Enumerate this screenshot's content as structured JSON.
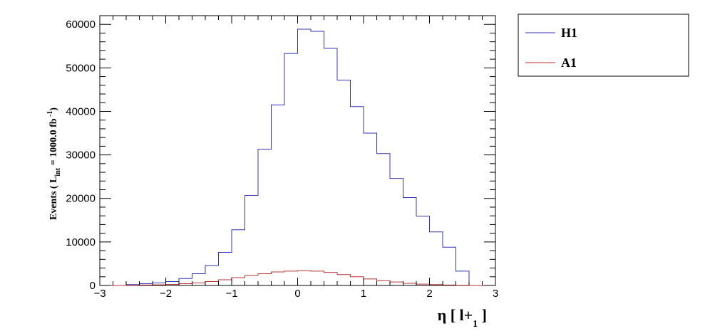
{
  "chart_data": {
    "type": "line",
    "subtype": "step-histogram",
    "xlabel": {
      "main": "η [ l+",
      "sub": "1",
      "end": " ]"
    },
    "ylabel": {
      "prefix": "Events  ( L",
      "sub": "int",
      "mid": " = 1000.0 fb",
      "sup": " -1",
      "end": ")"
    },
    "xlim": [
      -3,
      3
    ],
    "ylim": [
      0,
      62000
    ],
    "x_ticks": [
      -3,
      -2,
      -1,
      0,
      1,
      2,
      3
    ],
    "x_tick_labels": [
      "−3",
      "−2",
      "−1",
      "0",
      "1",
      "2",
      "3"
    ],
    "y_ticks": [
      0,
      10000,
      20000,
      30000,
      40000,
      50000,
      60000
    ],
    "y_tick_labels": [
      "0",
      "10000",
      "20000",
      "30000",
      "40000",
      "50000",
      "60000"
    ],
    "bin_edges": [
      -3.0,
      -2.8,
      -2.6,
      -2.4,
      -2.2,
      -2.0,
      -1.8,
      -1.6,
      -1.4,
      -1.2,
      -1.0,
      -0.8,
      -0.6,
      -0.4,
      -0.2,
      0.0,
      0.2,
      0.4,
      0.6,
      0.8,
      1.0,
      1.2,
      1.4,
      1.6,
      1.8,
      2.0,
      2.2,
      2.4,
      2.6,
      2.8,
      3.0
    ],
    "series": [
      {
        "name": "H1",
        "color": "#3333bb",
        "values": [
          0,
          0,
          200,
          400,
          600,
          900,
          1600,
          2700,
          4600,
          7600,
          12800,
          20700,
          31300,
          41500,
          53300,
          58900,
          58400,
          54500,
          47200,
          41100,
          35000,
          30300,
          24600,
          20200,
          15900,
          12300,
          8800,
          3300,
          0,
          0
        ]
      },
      {
        "name": "A1",
        "color": "#bb3333",
        "values": [
          0,
          0,
          50,
          100,
          150,
          250,
          400,
          600,
          900,
          1300,
          1800,
          2300,
          2700,
          3100,
          3300,
          3400,
          3300,
          3000,
          2500,
          2000,
          1500,
          1100,
          800,
          500,
          300,
          200,
          100,
          50,
          0,
          0
        ]
      }
    ],
    "legend": {
      "position": "top-right-outside"
    },
    "grid": false
  }
}
